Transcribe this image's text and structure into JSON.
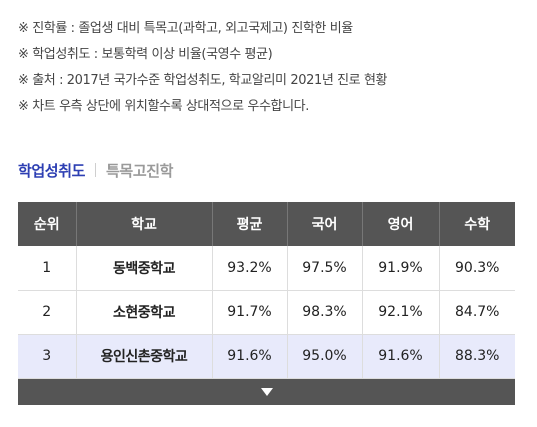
{
  "notes": [
    "※ 진학률 : 졸업생 대비 특목고(과학고, 외고국제고) 진학한 비율",
    "※ 학업성취도 : 보통학력 이상 비율(국영수 평균)",
    "※ 출처 : 2017년 국가수준 학업성취도, 학교알리미 2021년 진로 현황",
    "※ 차트 우측 상단에 위치할수록 상대적으로 우수합니다."
  ],
  "tabs": [
    {
      "label": "학업성취도",
      "active": true
    },
    {
      "label": "특목고진학",
      "active": false
    }
  ],
  "table": {
    "headers": [
      "순위",
      "학교",
      "평균",
      "국어",
      "영어",
      "수학"
    ],
    "rows": [
      [
        "1",
        "동백중학교",
        "93.2%",
        "97.5%",
        "91.9%",
        "90.3%"
      ],
      [
        "2",
        "소현중학교",
        "91.7%",
        "98.3%",
        "92.1%",
        "84.7%"
      ],
      [
        "3",
        "용인신촌중학교",
        "91.6%",
        "95.0%",
        "91.6%",
        "88.3%"
      ]
    ],
    "highlight_row": 2
  },
  "expand_icon": "chevron-down-icon",
  "colors": {
    "accent": "#2d3fb3",
    "header_bg": "#555555",
    "highlight_bg": "#e8eafb"
  }
}
